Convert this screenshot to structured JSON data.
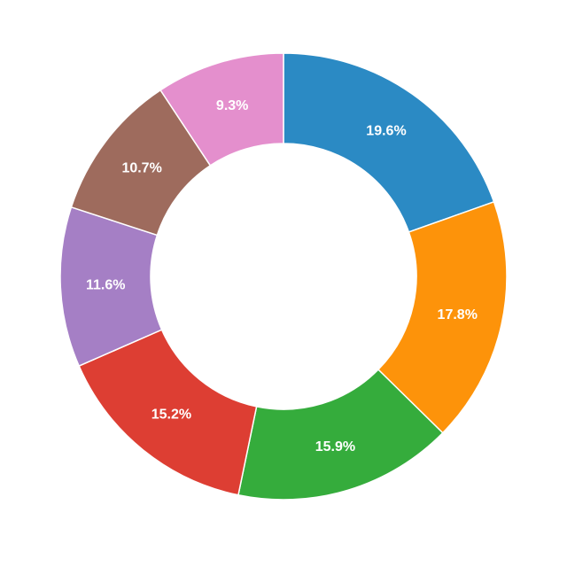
{
  "chart_data": {
    "type": "pie",
    "donut": true,
    "values": [
      19.6,
      17.8,
      15.9,
      15.2,
      11.6,
      10.7,
      9.3
    ],
    "labels": [
      "19.6%",
      "17.8%",
      "15.9%",
      "15.2%",
      "11.6%",
      "10.7%",
      "9.3%"
    ],
    "colors": [
      "#2b8ac4",
      "#fd930a",
      "#35ac3c",
      "#dd3e33",
      "#a57fc5",
      "#9e6b5d",
      "#e48fcd"
    ],
    "start": "12 o'clock",
    "direction": "clockwise",
    "legend": "none"
  }
}
